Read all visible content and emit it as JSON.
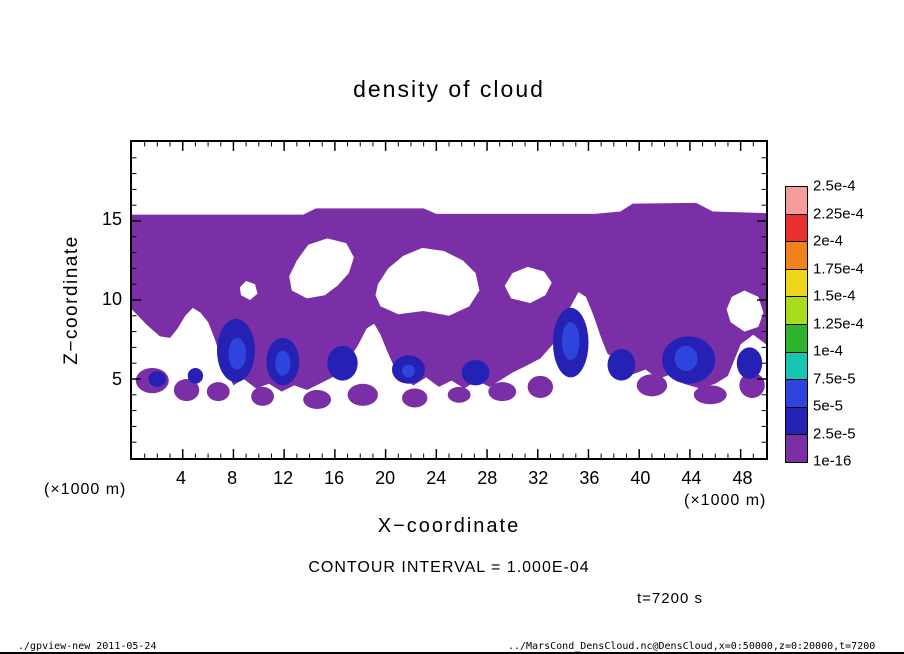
{
  "chart_data": {
    "type": "filled_contour",
    "title": "density of cloud",
    "x": {
      "label": "X−coordinate",
      "unit": "(×1000 m)",
      "range": [
        0,
        50
      ],
      "major_ticks": [
        4,
        8,
        12,
        16,
        20,
        24,
        28,
        32,
        36,
        40,
        44,
        48
      ],
      "minor_step": 1
    },
    "y": {
      "label": "Z−coordinate",
      "unit": "(×1000 m)",
      "range": [
        0,
        20
      ],
      "major_ticks": [
        5,
        10,
        15
      ],
      "minor_step": 1
    },
    "contour_interval": "1.000E-04",
    "colorbar": {
      "labels_top_to_bottom": [
        "2.5e-4",
        "2.25e-4",
        "2e-4",
        "1.75e-4",
        "1.5e-4",
        "1.25e-4",
        "1e-4",
        "7.5e-5",
        "5e-5",
        "2.5e-5",
        "1e-16"
      ],
      "colors_top_to_bottom": [
        "#F59C9C",
        "#E93030",
        "#F0821C",
        "#EFD51C",
        "#A8DC1E",
        "#2DB42D",
        "#17C5B2",
        "#2E45DD",
        "#2621B5",
        "#7B2FA6"
      ]
    },
    "field": {
      "background": "#FFFFFF",
      "main_region": {
        "color": "#7B2FA6",
        "points": [
          [
            0,
            15.4
          ],
          [
            13.5,
            15.4
          ],
          [
            14.5,
            15.8
          ],
          [
            23,
            15.8
          ],
          [
            24,
            15.45
          ],
          [
            36.5,
            15.45
          ],
          [
            38.5,
            15.6
          ],
          [
            39.5,
            16.1
          ],
          [
            44.5,
            16.15
          ],
          [
            45.8,
            15.6
          ],
          [
            50,
            15.5
          ],
          [
            50,
            7.2
          ],
          [
            49,
            7.8
          ],
          [
            48,
            7.2
          ],
          [
            47.5,
            6.2
          ],
          [
            47,
            5.2
          ],
          [
            46,
            4.7
          ],
          [
            44.8,
            4.4
          ],
          [
            43.5,
            4.7
          ],
          [
            42.5,
            5.3
          ],
          [
            41.5,
            5.0
          ],
          [
            40.5,
            5.6
          ],
          [
            39.5,
            5.3
          ],
          [
            38.5,
            6.1
          ],
          [
            37.5,
            6.6
          ],
          [
            37,
            7.6
          ],
          [
            36.4,
            9.0
          ],
          [
            35.8,
            10.2
          ],
          [
            35.2,
            10.5
          ],
          [
            34.6,
            9.6
          ],
          [
            34,
            8.4
          ],
          [
            33.2,
            7.2
          ],
          [
            32.2,
            6.3
          ],
          [
            31,
            5.8
          ],
          [
            30,
            5.4
          ],
          [
            29,
            4.9
          ],
          [
            28.2,
            4.5
          ],
          [
            27.2,
            4.9
          ],
          [
            26.2,
            4.4
          ],
          [
            25.2,
            4.9
          ],
          [
            24.2,
            4.5
          ],
          [
            23.2,
            5.1
          ],
          [
            22.2,
            4.6
          ],
          [
            21.2,
            5.1
          ],
          [
            20.6,
            5.9
          ],
          [
            20.1,
            6.8
          ],
          [
            19.6,
            7.8
          ],
          [
            19.1,
            8.5
          ],
          [
            18.5,
            8.2
          ],
          [
            17.8,
            7.1
          ],
          [
            16.8,
            5.9
          ],
          [
            15.8,
            5.1
          ],
          [
            14.8,
            4.7
          ],
          [
            13.8,
            4.3
          ],
          [
            12.8,
            4.6
          ],
          [
            11.8,
            4.2
          ],
          [
            10.8,
            4.7
          ],
          [
            9.8,
            4.4
          ],
          [
            8.8,
            5.0
          ],
          [
            8.0,
            4.6
          ],
          [
            7.5,
            5.4
          ],
          [
            7.0,
            6.4
          ],
          [
            6.5,
            7.6
          ],
          [
            6.0,
            8.6
          ],
          [
            5.4,
            9.2
          ],
          [
            4.8,
            9.5
          ],
          [
            4.2,
            9.0
          ],
          [
            3.6,
            8.2
          ],
          [
            3.0,
            7.6
          ],
          [
            2.2,
            7.7
          ],
          [
            1.2,
            8.4
          ],
          [
            0,
            9.4
          ]
        ]
      },
      "holes": [
        {
          "points": [
            [
              12.6,
              10.6
            ],
            [
              13.8,
              10.1
            ],
            [
              15.2,
              10.3
            ],
            [
              16.2,
              10.9
            ],
            [
              17.1,
              11.7
            ],
            [
              17.5,
              12.7
            ],
            [
              16.9,
              13.6
            ],
            [
              15.4,
              13.9
            ],
            [
              13.9,
              13.5
            ],
            [
              13.0,
              12.5
            ],
            [
              12.4,
              11.5
            ]
          ]
        },
        {
          "points": [
            [
              19.6,
              9.6
            ],
            [
              21,
              9.1
            ],
            [
              23,
              9.3
            ],
            [
              25,
              9.0
            ],
            [
              26.6,
              9.6
            ],
            [
              27.4,
              10.6
            ],
            [
              27.1,
              11.7
            ],
            [
              26.1,
              12.5
            ],
            [
              24.6,
              13.1
            ],
            [
              22.9,
              13.3
            ],
            [
              21.4,
              12.8
            ],
            [
              20.2,
              12.0
            ],
            [
              19.4,
              11.0
            ],
            [
              19.2,
              10.3
            ]
          ]
        },
        {
          "points": [
            [
              29.9,
              10.1
            ],
            [
              31.4,
              9.8
            ],
            [
              32.6,
              10.3
            ],
            [
              33.1,
              11.1
            ],
            [
              32.5,
              11.8
            ],
            [
              31.2,
              12.1
            ],
            [
              30.0,
              11.7
            ],
            [
              29.4,
              10.9
            ]
          ]
        },
        {
          "points": [
            [
              47.2,
              8.6
            ],
            [
              48.3,
              8.0
            ],
            [
              49.4,
              8.3
            ],
            [
              49.8,
              9.2
            ],
            [
              49.4,
              10.2
            ],
            [
              48.3,
              10.6
            ],
            [
              47.3,
              10.2
            ],
            [
              46.9,
              9.4
            ]
          ]
        },
        {
          "points": [
            [
              8.6,
              10.3
            ],
            [
              9.3,
              10.0
            ],
            [
              9.9,
              10.4
            ],
            [
              9.7,
              11.0
            ],
            [
              9.0,
              11.2
            ],
            [
              8.5,
              10.8
            ]
          ]
        }
      ],
      "patches": [
        {
          "color": "#7B2FA6",
          "ellipses": [
            [
              1.6,
              4.9,
              1.3,
              0.8
            ],
            [
              4.3,
              4.3,
              1.0,
              0.7
            ],
            [
              6.8,
              4.2,
              0.9,
              0.6
            ],
            [
              10.3,
              3.9,
              0.9,
              0.6
            ],
            [
              14.6,
              3.7,
              1.1,
              0.6
            ],
            [
              18.2,
              4.0,
              1.2,
              0.7
            ],
            [
              22.3,
              3.8,
              1.0,
              0.6
            ],
            [
              25.8,
              4.0,
              0.9,
              0.5
            ],
            [
              29.2,
              4.2,
              1.1,
              0.6
            ],
            [
              32.2,
              4.5,
              1.0,
              0.7
            ],
            [
              41.0,
              4.6,
              1.2,
              0.7
            ],
            [
              45.6,
              4.0,
              1.3,
              0.6
            ],
            [
              48.9,
              4.6,
              1.0,
              0.8
            ]
          ]
        },
        {
          "color": "#2621B5",
          "ellipses": [
            [
              8.2,
              6.8,
              1.5,
              2.0
            ],
            [
              11.9,
              6.1,
              1.3,
              1.5
            ],
            [
              16.6,
              6.0,
              1.2,
              1.1
            ],
            [
              21.8,
              5.6,
              1.3,
              0.9
            ],
            [
              27.1,
              5.4,
              1.1,
              0.8
            ],
            [
              34.6,
              7.3,
              1.4,
              2.2
            ],
            [
              38.6,
              5.9,
              1.1,
              1.0
            ],
            [
              43.9,
              6.2,
              2.1,
              1.5
            ],
            [
              48.7,
              6.0,
              1.0,
              1.0
            ],
            [
              2.0,
              5.0,
              0.7,
              0.5
            ],
            [
              5.0,
              5.2,
              0.6,
              0.5
            ]
          ]
        },
        {
          "color": "#2E45DD",
          "ellipses": [
            [
              8.3,
              6.6,
              0.7,
              1.0
            ],
            [
              11.9,
              6.0,
              0.6,
              0.8
            ],
            [
              34.6,
              7.4,
              0.7,
              1.2
            ],
            [
              43.7,
              6.3,
              0.9,
              0.8
            ],
            [
              21.8,
              5.5,
              0.5,
              0.4
            ]
          ]
        }
      ]
    }
  },
  "annotations": {
    "contour_interval_text": "CONTOUR INTERVAL = 1.000E-04",
    "time_label": "t=7200 s"
  },
  "footer": {
    "left": "./gpview-new  2011-05-24",
    "right": "../MarsCond_DensCloud.nc@DensCloud,x=0:50000,z=0:20000,t=7200"
  }
}
